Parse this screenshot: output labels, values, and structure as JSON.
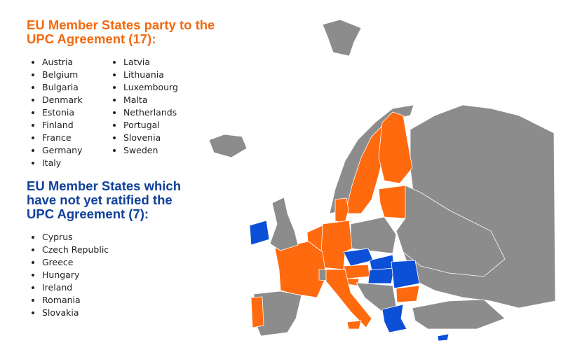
{
  "sections": [
    {
      "title": "EU Member States party to the UPC Agreement (17):",
      "items": [
        "Austria",
        "Belgium",
        "Bulgaria",
        "Denmark",
        "Estonia",
        "Finland",
        "France",
        "Germany",
        "Italy",
        "Latvia",
        "Lithuania",
        "Luxembourg",
        "Malta",
        "Netherlands",
        "Portugal",
        "Slovenia",
        "Sweden"
      ]
    },
    {
      "title": "EU Member States which have not yet ratified the UPC Agreement (7):",
      "items": [
        "Cyprus",
        "Czech Republic",
        "Greece",
        "Hungary",
        "Ireland",
        "Romania",
        "Slovakia"
      ]
    }
  ]
}
